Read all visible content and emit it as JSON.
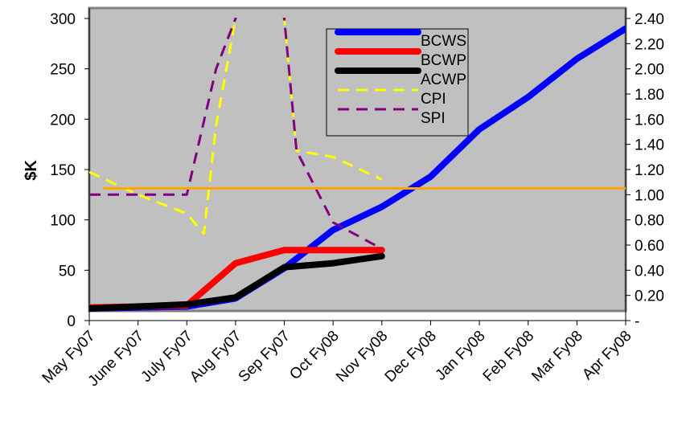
{
  "chart_data": {
    "type": "line",
    "categories": [
      "May Fy07",
      "June Fy07",
      "July Fy07",
      "Aug Fy07",
      "Sep Fy07",
      "Oct Fy08",
      "Nov Fy08",
      "Dec Fy08",
      "Jan Fy08",
      "Feb Fy08",
      "Mar Fy08",
      "Apr Fy08"
    ],
    "ylabel": "$K",
    "y_left": {
      "min": 0,
      "max": 300,
      "ticks": [
        "0",
        "50",
        "100",
        "150",
        "200",
        "250",
        "300"
      ]
    },
    "y_right": {
      "min": 0,
      "max": 2.4,
      "ticks": [
        "-",
        "0.20",
        "0.40",
        "0.60",
        "0.80",
        "1.00",
        "1.20",
        "1.40",
        "1.60",
        "1.80",
        "2.00",
        "2.20",
        "2.40"
      ]
    },
    "plot_background": "#c0c0c0",
    "legend_position": "top-center",
    "series": [
      {
        "name": "BCWS",
        "axis": "left",
        "color": "#0000ff",
        "style": "solid-thick",
        "points": [
          [
            0,
            12
          ],
          [
            1,
            13
          ],
          [
            2,
            14
          ],
          [
            3,
            22
          ],
          [
            4,
            52
          ],
          [
            5,
            90
          ],
          [
            6,
            113
          ],
          [
            7,
            143
          ],
          [
            8,
            190
          ],
          [
            9,
            222
          ],
          [
            10,
            260
          ],
          [
            11,
            290
          ]
        ]
      },
      {
        "name": "BCWP",
        "axis": "left",
        "color": "#ff0000",
        "style": "solid-thick",
        "points": [
          [
            0,
            13
          ],
          [
            1,
            14
          ],
          [
            2,
            15
          ],
          [
            3,
            57
          ],
          [
            4,
            70
          ],
          [
            5,
            70
          ],
          [
            6,
            70
          ]
        ]
      },
      {
        "name": "ACWP",
        "axis": "left",
        "color": "#000000",
        "style": "solid-thick",
        "points": [
          [
            0,
            12
          ],
          [
            1,
            14
          ],
          [
            2,
            16
          ],
          [
            3,
            23
          ],
          [
            4,
            53
          ],
          [
            5,
            57
          ],
          [
            6,
            64
          ]
        ]
      },
      {
        "name": "CPI",
        "axis": "right",
        "color": "#ffff00",
        "style": "dashed",
        "points": [
          [
            0,
            1.18
          ],
          [
            1,
            1.0
          ],
          [
            2,
            0.85
          ],
          [
            2.35,
            0.69
          ],
          [
            2.6,
            1.55
          ],
          [
            3.0,
            2.4
          ],
          [
            3.45,
            2.9
          ],
          [
            4.0,
            2.4
          ],
          [
            4.25,
            1.35
          ],
          [
            5,
            1.3
          ],
          [
            6,
            1.12
          ]
        ]
      },
      {
        "name": "SPI",
        "axis": "right",
        "color": "#800080",
        "style": "dashed",
        "points": [
          [
            0,
            1.0
          ],
          [
            1,
            1.0
          ],
          [
            2,
            1.0
          ],
          [
            2.6,
            2.0
          ],
          [
            3.0,
            2.4
          ],
          [
            3.45,
            2.9
          ],
          [
            4.0,
            2.4
          ],
          [
            4.25,
            1.35
          ],
          [
            5,
            0.78
          ],
          [
            6,
            0.57
          ]
        ]
      },
      {
        "name": "",
        "axis": "right",
        "color": "#ffa500",
        "style": "solid",
        "points": [
          [
            0.3,
            1.05
          ],
          [
            11,
            1.05
          ]
        ]
      }
    ]
  }
}
